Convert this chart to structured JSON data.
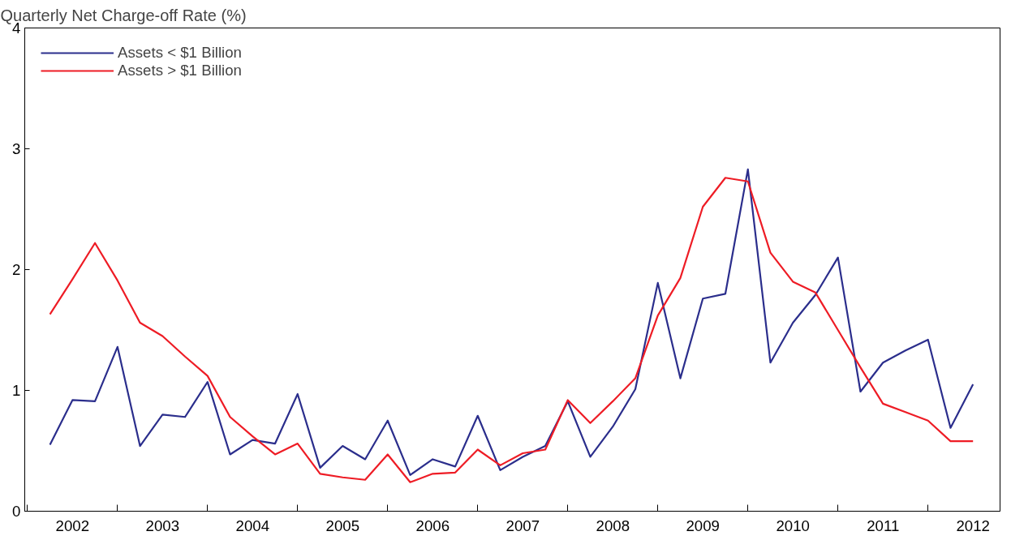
{
  "chart_data": {
    "type": "line",
    "ylabel": "Quarterly Net Charge-off Rate (%)",
    "x": [
      2002,
      2002.25,
      2002.5,
      2002.75,
      2003,
      2003.25,
      2003.5,
      2003.75,
      2004,
      2004.25,
      2004.5,
      2004.75,
      2005,
      2005.25,
      2005.5,
      2005.75,
      2006,
      2006.25,
      2006.5,
      2006.75,
      2007,
      2007.25,
      2007.5,
      2007.75,
      2008,
      2008.25,
      2008.5,
      2008.75,
      2009,
      2009.25,
      2009.5,
      2009.75,
      2010,
      2010.25,
      2010.5,
      2010.75,
      2011,
      2011.25,
      2011.5,
      2011.75,
      2012,
      2012.25
    ],
    "series": [
      {
        "name": "Assets < $1 Billion",
        "color": "#2b2e8c",
        "values": [
          0.55,
          0.92,
          0.91,
          1.36,
          0.54,
          0.8,
          0.78,
          1.07,
          0.47,
          0.59,
          0.56,
          0.97,
          0.36,
          0.54,
          0.43,
          0.75,
          0.3,
          0.43,
          0.37,
          0.79,
          0.34,
          0.45,
          0.54,
          0.91,
          0.45,
          0.7,
          1.01,
          1.89,
          1.1,
          1.76,
          1.8,
          2.83,
          1.23,
          1.56,
          1.79,
          2.1,
          0.99,
          1.23,
          1.33,
          1.42,
          0.69,
          1.05
        ]
      },
      {
        "name": "Assets > $1 Billion",
        "color": "#ee1c25",
        "values": [
          1.63,
          1.92,
          2.22,
          1.91,
          1.56,
          1.45,
          1.28,
          1.12,
          0.78,
          0.62,
          0.47,
          0.56,
          0.31,
          0.28,
          0.26,
          0.47,
          0.24,
          0.31,
          0.32,
          0.51,
          0.38,
          0.48,
          0.51,
          0.92,
          0.73,
          0.91,
          1.1,
          1.62,
          1.93,
          2.52,
          2.76,
          2.73,
          2.14,
          1.9,
          1.81,
          1.5,
          1.19,
          0.89,
          0.82,
          0.75,
          0.58,
          0.58
        ]
      }
    ],
    "xlim": [
      2001.72,
      2012.55
    ],
    "xticks": [
      {
        "value": 2001.75,
        "label": null
      },
      {
        "value": 2002.25,
        "label": "2002"
      },
      {
        "value": 2002.75,
        "label": null
      },
      {
        "value": 2003.25,
        "label": "2003"
      },
      {
        "value": 2003.75,
        "label": null
      },
      {
        "value": 2004.25,
        "label": "2004"
      },
      {
        "value": 2004.75,
        "label": null
      },
      {
        "value": 2005.25,
        "label": "2005"
      },
      {
        "value": 2005.75,
        "label": null
      },
      {
        "value": 2006.25,
        "label": "2006"
      },
      {
        "value": 2006.75,
        "label": null
      },
      {
        "value": 2007.25,
        "label": "2007"
      },
      {
        "value": 2007.75,
        "label": null
      },
      {
        "value": 2008.25,
        "label": "2008"
      },
      {
        "value": 2008.75,
        "label": null
      },
      {
        "value": 2009.25,
        "label": "2009"
      },
      {
        "value": 2009.75,
        "label": null
      },
      {
        "value": 2010.25,
        "label": "2010"
      },
      {
        "value": 2010.75,
        "label": null
      },
      {
        "value": 2011.25,
        "label": "2011"
      },
      {
        "value": 2011.75,
        "label": null
      },
      {
        "value": 2012.25,
        "label": "2012"
      }
    ],
    "ylim": [
      0,
      4
    ],
    "yticks": [
      0,
      1,
      2,
      3,
      4
    ],
    "legend": "top left",
    "grid": false,
    "marker": "none",
    "line_style": "solid"
  }
}
